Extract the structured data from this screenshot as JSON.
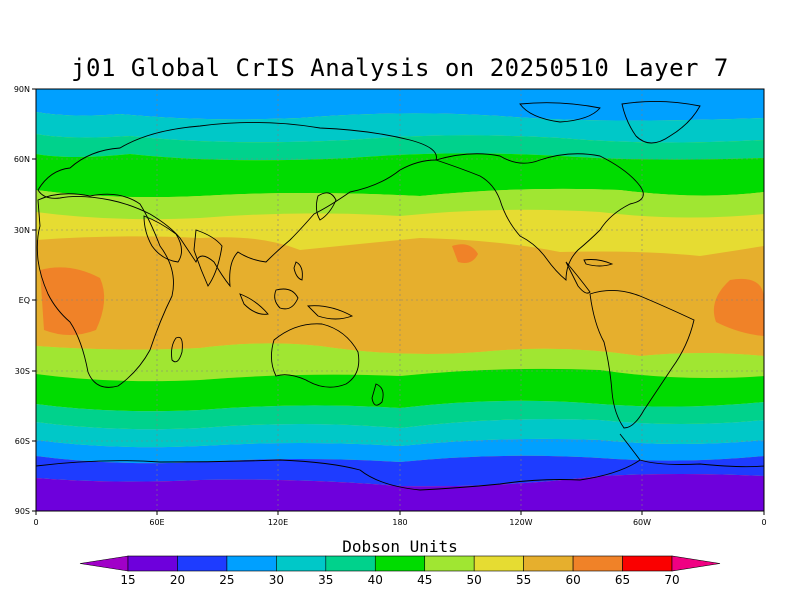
{
  "title": "j01 Global CrIS Analysis on 20250510 Layer 7",
  "lat_ticks": [
    "90N",
    "60N",
    "30N",
    "EQ",
    "30S",
    "60S",
    "90S"
  ],
  "lon_ticks": [
    "0",
    "60E",
    "120E",
    "180",
    "120W",
    "60W",
    "0"
  ],
  "colorbar": {
    "title": "Dobson Units",
    "tick_labels": [
      "15",
      "20",
      "25",
      "30",
      "35",
      "40",
      "45",
      "50",
      "55",
      "60",
      "65",
      "70"
    ],
    "bins": [
      {
        "color": "#a000c8"
      },
      {
        "color": "#6e00dc"
      },
      {
        "color": "#1e3cff"
      },
      {
        "color": "#00a0ff"
      },
      {
        "color": "#00c8c8"
      },
      {
        "color": "#00d28c"
      },
      {
        "color": "#00dc00"
      },
      {
        "color": "#a0e632"
      },
      {
        "color": "#e6dc32"
      },
      {
        "color": "#e6af2d"
      },
      {
        "color": "#f08228"
      },
      {
        "color": "#fa0000"
      },
      {
        "color": "#f00082"
      }
    ]
  },
  "zones": [
    {
      "color": "#00a0ff"
    },
    {
      "color": "#00c8c8"
    },
    {
      "color": "#00d28c"
    },
    {
      "color": "#00dc00"
    },
    {
      "color": "#a0e632"
    },
    {
      "color": "#e6dc32"
    },
    {
      "color": "#e6af2d"
    },
    {
      "color": "#f08228"
    },
    {
      "color": "#1e3cff"
    },
    {
      "color": "#6e00dc"
    }
  ]
}
